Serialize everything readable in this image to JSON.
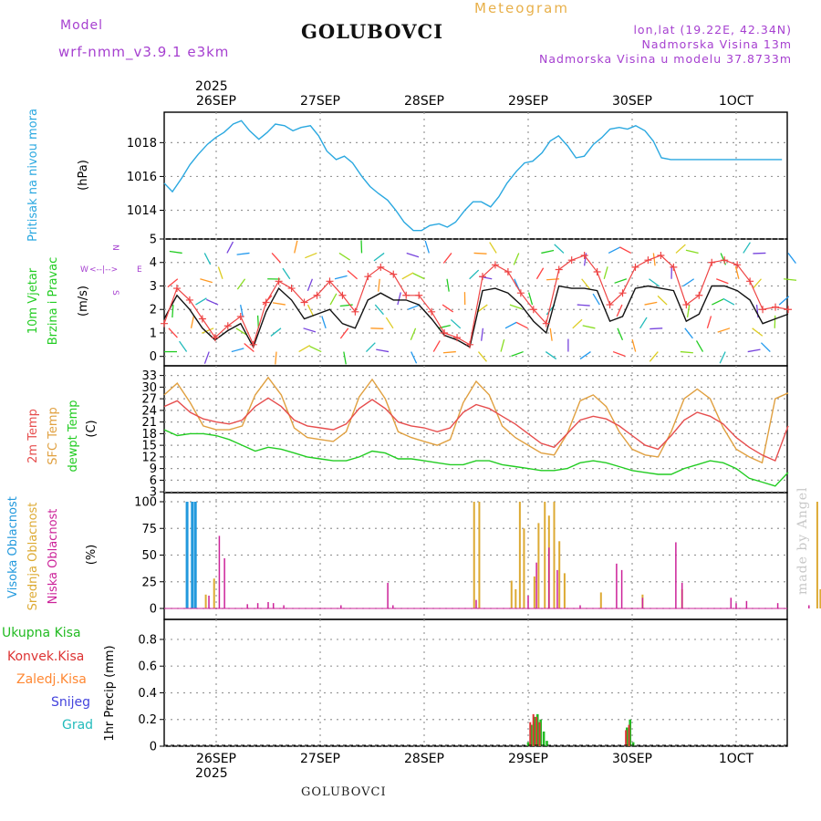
{
  "header": {
    "model_label": "Model",
    "model_name": "wrf-nmm_v3.9.1 e3km",
    "title": "GOLUBOVCI",
    "meteogram": "Meteogram",
    "lonlat": "lon,lat (19.22E, 42.34N)",
    "altitude": "Nadmorska Visina 13m",
    "altitude_model": "Nadmorska Visina u modelu 37.8733m"
  },
  "footer": {
    "title": "GOLUBOVCI",
    "watermark": "made by Angel"
  },
  "colors": {
    "pressure": "#2aa8e0",
    "wind_mean": "#111111",
    "wind_gust": "#ee4444",
    "temp2m": "#e64d4d",
    "sfc_temp": "#e0a040",
    "dewpt": "#22cc22",
    "high_cloud": "#2299dd",
    "mid_cloud": "#ddaa33",
    "low_cloud": "#cc2299",
    "precip_total": "#22bb22",
    "precip_conv": "#dd3333",
    "precip_frozen": "#ff8833",
    "snow": "#4444dd",
    "grad": "#22bbbb",
    "purple": "#a640d0"
  },
  "chart_data": [
    {
      "type": "line",
      "id": "pressure",
      "ylabel_left": "Pritisak na nivou mora",
      "unit": "(hPa)",
      "x_days": [
        0,
        0.08,
        0.17,
        0.25,
        0.33,
        0.42,
        0.5,
        0.58,
        0.67,
        0.75,
        0.83,
        0.92,
        1.0,
        1.08,
        1.17,
        1.25,
        1.33,
        1.42,
        1.5,
        1.58,
        1.67,
        1.75,
        1.83,
        1.92,
        2.0,
        2.08,
        2.17,
        2.25,
        2.33,
        2.42,
        2.5,
        2.58,
        2.67,
        2.75,
        2.83,
        2.92,
        3.0,
        3.08,
        3.17,
        3.25,
        3.33,
        3.42,
        3.5,
        3.58,
        3.67,
        3.75,
        3.83,
        3.92,
        4.0,
        4.08,
        4.17,
        4.25,
        4.33,
        4.42,
        4.5,
        4.58,
        4.67,
        4.75,
        4.83,
        4.92,
        5.0,
        5.08,
        5.17,
        5.25,
        5.33,
        5.42,
        5.5,
        5.58,
        5.67,
        5.75,
        5.83,
        5.92,
        6.0
      ],
      "values": [
        1015.6,
        1015.1,
        1015.9,
        1016.7,
        1017.3,
        1017.9,
        1018.3,
        1018.6,
        1019.1,
        1019.3,
        1018.7,
        1018.2,
        1018.6,
        1019.1,
        1019.0,
        1018.7,
        1018.9,
        1019.0,
        1018.4,
        1017.5,
        1017.0,
        1017.2,
        1016.8,
        1016.0,
        1015.4,
        1015.0,
        1014.6,
        1014.0,
        1013.3,
        1012.8,
        1012.8,
        1013.1,
        1013.2,
        1013.0,
        1013.3,
        1014.0,
        1014.5,
        1014.5,
        1014.2,
        1014.8,
        1015.6,
        1016.3,
        1016.8,
        1016.9,
        1017.4,
        1018.1,
        1018.4,
        1017.8,
        1017.1,
        1017.2,
        1017.9,
        1018.3,
        1018.8,
        1018.9,
        1018.8,
        1019.0,
        1018.7,
        1018.1,
        1017.1,
        1017.0,
        1017.0,
        1017.0,
        1017.0,
        1017.0,
        1017.0,
        1017.0,
        1017.0,
        1017.0,
        1017.0,
        1017.0,
        1017.0,
        1017.0,
        1017.0
      ],
      "yticks": [
        1014,
        1016,
        1018
      ],
      "ylim": [
        1012.3,
        1019.8
      ]
    },
    {
      "type": "line",
      "id": "wind",
      "ylabel_left": "10m Vjetar Brzina i Pravac",
      "unit": "(m/s)",
      "compass": {
        "n": "N",
        "s": "S",
        "e": "E",
        "w": "W"
      },
      "mean": [
        1.6,
        2.6,
        2.0,
        1.2,
        0.7,
        1.1,
        1.4,
        0.4,
        1.9,
        2.9,
        2.4,
        1.6,
        1.8,
        2.0,
        1.4,
        1.2,
        2.4,
        2.7,
        2.4,
        2.4,
        2.2,
        1.6,
        0.9,
        0.7,
        0.4,
        2.8,
        2.9,
        2.7,
        2.2,
        1.5,
        1.0,
        3.0,
        2.9,
        2.9,
        2.8,
        1.5,
        1.7,
        2.9,
        3.0,
        2.9,
        2.8,
        1.5,
        1.8,
        3.0,
        3.0,
        2.8,
        2.4,
        1.4,
        1.6,
        1.8
      ],
      "gust": [
        1.4,
        2.9,
        2.4,
        1.6,
        0.8,
        1.3,
        1.7,
        0.5,
        2.3,
        3.2,
        2.9,
        2.3,
        2.6,
        3.2,
        2.6,
        1.9,
        3.4,
        3.8,
        3.5,
        2.6,
        2.6,
        1.9,
        1.0,
        0.8,
        0.5,
        3.4,
        3.9,
        3.6,
        2.7,
        2.0,
        1.4,
        3.7,
        4.1,
        4.3,
        3.6,
        2.2,
        2.7,
        3.8,
        4.1,
        4.3,
        3.8,
        2.2,
        2.6,
        4.0,
        4.1,
        3.9,
        3.2,
        2.0,
        2.1,
        2.0
      ],
      "yticks": [
        0,
        1,
        2,
        3,
        4,
        5
      ],
      "ylim": [
        -0.4,
        5
      ]
    },
    {
      "type": "line",
      "id": "temperature",
      "ylabel_left": [
        "2m Temp",
        "SFC Temp",
        "dewpt Temp"
      ],
      "unit": "(C)",
      "x_days": [
        0,
        0.125,
        0.25,
        0.375,
        0.5,
        0.625,
        0.75,
        0.875,
        1.0,
        1.125,
        1.25,
        1.375,
        1.5,
        1.625,
        1.75,
        1.875,
        2.0,
        2.125,
        2.25,
        2.375,
        2.5,
        2.625,
        2.75,
        2.875,
        3.0,
        3.125,
        3.25,
        3.375,
        3.5,
        3.625,
        3.75,
        3.875,
        4.0,
        4.125,
        4.25,
        4.375,
        4.5,
        4.625,
        4.75,
        4.875,
        5.0,
        5.125,
        5.25,
        5.375,
        5.5,
        5.625,
        5.75,
        5.875,
        6.0
      ],
      "temp2m": [
        25,
        26.5,
        23.5,
        21.8,
        21,
        20.5,
        21.5,
        25,
        27.2,
        25,
        21.5,
        20,
        19.5,
        19,
        20.5,
        24.5,
        26.8,
        24.5,
        21,
        20,
        19.5,
        18.5,
        19.5,
        23.5,
        25.5,
        24.5,
        22.5,
        20.5,
        18,
        15.5,
        14.5,
        18,
        21.5,
        22.5,
        21.8,
        20,
        17.5,
        15,
        14,
        17.5,
        21.5,
        23.5,
        22.5,
        20.5,
        17,
        14.5,
        12.5,
        11,
        20
      ],
      "sfc": [
        28,
        31,
        26,
        20,
        19,
        19,
        20,
        28,
        32.5,
        28,
        19.5,
        17,
        16.5,
        16,
        18.5,
        27.5,
        32,
        27,
        18.5,
        17,
        16,
        15,
        16.5,
        26,
        31.5,
        28,
        20,
        17,
        15,
        13,
        12.5,
        18,
        26.5,
        28,
        25,
        18.5,
        14,
        12.5,
        12,
        18.5,
        27,
        29.5,
        27,
        19.5,
        14,
        12,
        10.5,
        27,
        28.5
      ],
      "dewpt": [
        19,
        17.5,
        18,
        18,
        17.5,
        16.5,
        15,
        13.5,
        14.5,
        14,
        13,
        12,
        11.5,
        11,
        11,
        12,
        13.5,
        13,
        11.5,
        11.5,
        11,
        10.5,
        10,
        10,
        11,
        11,
        10,
        9.5,
        9,
        8.5,
        8.5,
        9,
        10.5,
        11,
        10.5,
        9.5,
        8.5,
        8,
        7.5,
        7.5,
        9,
        10,
        11,
        10.5,
        9,
        6.5,
        5.5,
        4.5,
        8
      ],
      "yticks": [
        3,
        6,
        9,
        12,
        15,
        18,
        21,
        24,
        27,
        30,
        33
      ],
      "ylim": [
        2.8,
        35.5
      ]
    },
    {
      "type": "bar",
      "id": "clouds",
      "ylabel_left": [
        "Visoka Oblacnost",
        "Srednja Oblacnost",
        "Niska Oblacnost"
      ],
      "unit": "(%)",
      "high": [
        [
          0.22,
          100
        ],
        [
          0.27,
          100
        ],
        [
          0.3,
          100
        ]
      ],
      "mid": [
        [
          0.4,
          13
        ],
        [
          0.48,
          28
        ],
        [
          2.98,
          100
        ],
        [
          3.03,
          100
        ],
        [
          3.34,
          26
        ],
        [
          3.38,
          18
        ],
        [
          3.42,
          100
        ],
        [
          3.46,
          75
        ],
        [
          3.56,
          30
        ],
        [
          3.6,
          80
        ],
        [
          3.66,
          100
        ],
        [
          3.7,
          87
        ],
        [
          3.75,
          100
        ],
        [
          3.8,
          63
        ],
        [
          3.85,
          33
        ],
        [
          4.2,
          15
        ],
        [
          4.6,
          13
        ],
        [
          4.98,
          18
        ],
        [
          6.28,
          100
        ],
        [
          6.31,
          18
        ],
        [
          6.35,
          26
        ],
        [
          6.42,
          100
        ]
      ],
      "low": [
        [
          0.43,
          12
        ],
        [
          0.53,
          68
        ],
        [
          0.58,
          47
        ],
        [
          0.8,
          4
        ],
        [
          0.9,
          5
        ],
        [
          1.0,
          6
        ],
        [
          1.05,
          5
        ],
        [
          1.15,
          3
        ],
        [
          1.7,
          3
        ],
        [
          2.15,
          24
        ],
        [
          2.2,
          3
        ],
        [
          3.0,
          8
        ],
        [
          3.5,
          12
        ],
        [
          3.58,
          43
        ],
        [
          3.7,
          57
        ],
        [
          3.78,
          36
        ],
        [
          4.0,
          3
        ],
        [
          4.35,
          42
        ],
        [
          4.4,
          36
        ],
        [
          4.6,
          10
        ],
        [
          4.92,
          62
        ],
        [
          4.98,
          24
        ],
        [
          5.45,
          10
        ],
        [
          5.5,
          5
        ],
        [
          5.6,
          7
        ],
        [
          5.9,
          5
        ],
        [
          6.2,
          3
        ]
      ],
      "yticks": [
        0,
        25,
        50,
        75,
        100
      ],
      "ylim": [
        0,
        100
      ]
    },
    {
      "type": "bar",
      "id": "precip",
      "ylabel_left": [
        "Ukupna Kisa",
        "Konvek.Kisa",
        "Zaledj.Kisa",
        "Snijeg",
        "Grad"
      ],
      "unit": "1hr Precip (mm)",
      "total": [
        [
          3.5,
          0.03
        ],
        [
          3.53,
          0.16
        ],
        [
          3.56,
          0.22
        ],
        [
          3.59,
          0.24
        ],
        [
          3.62,
          0.2
        ],
        [
          3.65,
          0.11
        ],
        [
          3.68,
          0.04
        ],
        [
          4.45,
          0.14
        ],
        [
          4.48,
          0.2
        ],
        [
          4.51,
          0.03
        ]
      ],
      "conv": [
        [
          3.52,
          0.18
        ],
        [
          3.55,
          0.24
        ],
        [
          3.58,
          0.22
        ],
        [
          3.61,
          0.18
        ],
        [
          4.44,
          0.12
        ],
        [
          4.47,
          0.16
        ]
      ],
      "yticks": [
        0,
        0.2,
        0.4,
        0.6,
        0.8
      ],
      "ylim": [
        0,
        0.95
      ]
    }
  ],
  "time_axis": {
    "year": "2025",
    "labels": [
      "26SEP",
      "27SEP",
      "28SEP",
      "29SEP",
      "30SEP",
      "1OCT"
    ],
    "start_day_offset": 0.5
  }
}
